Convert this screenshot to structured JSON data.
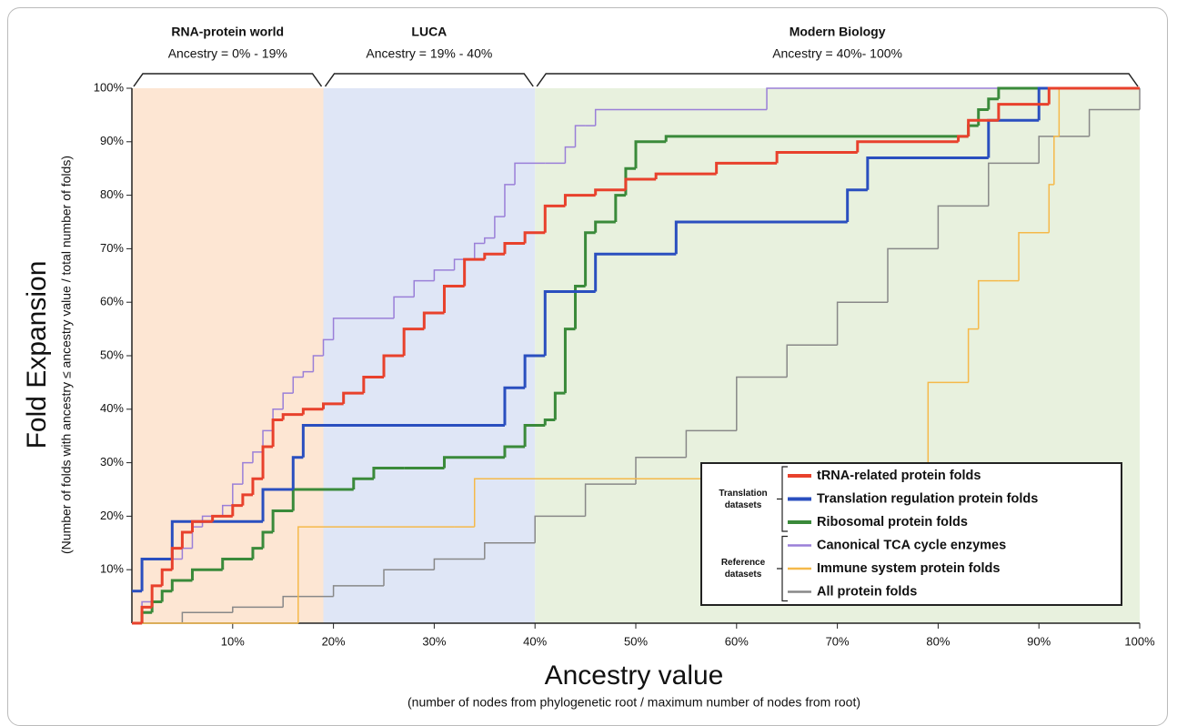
{
  "chart_data": {
    "type": "line",
    "step": true,
    "xlabel": "Ancestry value",
    "xlabel_note": "(number of nodes from phylogenetic root / maximum number of nodes from root)",
    "ylabel": "Fold Expansion",
    "ylabel_note": "(Number of folds with ancestry ≤ ancestry value / total number of folds)",
    "xlim": [
      0,
      100
    ],
    "ylim": [
      0,
      100
    ],
    "xticks": [
      {
        "value": 10,
        "label": "10%"
      },
      {
        "value": 20,
        "label": "20%"
      },
      {
        "value": 30,
        "label": "30%"
      },
      {
        "value": 40,
        "label": "40%"
      },
      {
        "value": 50,
        "label": "50%"
      },
      {
        "value": 60,
        "label": "60%"
      },
      {
        "value": 70,
        "label": "70%"
      },
      {
        "value": 80,
        "label": "80%"
      },
      {
        "value": 90,
        "label": "90%"
      },
      {
        "value": 100,
        "label": "100%"
      }
    ],
    "yticks": [
      {
        "value": 10,
        "label": "10%"
      },
      {
        "value": 20,
        "label": "20%"
      },
      {
        "value": 30,
        "label": "30%"
      },
      {
        "value": 40,
        "label": "40%"
      },
      {
        "value": 50,
        "label": "50%"
      },
      {
        "value": 60,
        "label": "60%"
      },
      {
        "value": 70,
        "label": "70%"
      },
      {
        "value": 80,
        "label": "80%"
      },
      {
        "value": 90,
        "label": "90%"
      },
      {
        "value": 100,
        "label": "100%"
      }
    ],
    "regions": [
      {
        "label": "RNA-protein world",
        "sublabel": "Ancestry = 0% - 19%",
        "range": [
          0,
          19
        ],
        "color": "#fde6d3"
      },
      {
        "label": "LUCA",
        "sublabel": "Ancestry = 19% - 40%",
        "range": [
          19,
          40
        ],
        "color": "#dfe6f6"
      },
      {
        "label": "Modern Biology",
        "sublabel": "Ancestry = 40%- 100%",
        "range": [
          40,
          100
        ],
        "color": "#e8f1de"
      }
    ],
    "legend": "lower right",
    "series": [
      {
        "name": "tRNA-related protein folds",
        "group": "Translation datasets",
        "color": "#e8412c",
        "width": 3,
        "x": [
          0,
          1,
          2,
          3,
          4,
          5,
          6,
          8,
          10,
          11,
          12,
          13,
          14,
          15,
          17,
          19,
          21,
          23,
          25,
          27,
          29,
          31,
          33,
          35,
          37,
          39,
          41,
          43,
          46,
          49,
          52,
          58,
          64,
          72,
          82,
          83,
          86,
          91,
          100
        ],
        "values": [
          0,
          3,
          7,
          10,
          14,
          17,
          19,
          20,
          22,
          24,
          27,
          33,
          38,
          39,
          40,
          41,
          43,
          46,
          50,
          55,
          58,
          63,
          68,
          69,
          71,
          73,
          78,
          80,
          81,
          83,
          84,
          86,
          88,
          90,
          91,
          94,
          97,
          100,
          100
        ]
      },
      {
        "name": "Translation regulation protein folds",
        "group": "Translation datasets",
        "color": "#2a4fbf",
        "width": 3,
        "x": [
          0,
          1,
          4,
          13,
          16,
          17,
          37,
          39,
          41,
          46,
          54,
          71,
          73,
          85,
          90,
          100
        ],
        "values": [
          6,
          12,
          19,
          25,
          31,
          37,
          44,
          50,
          62,
          69,
          75,
          81,
          87,
          94,
          100,
          100
        ]
      },
      {
        "name": "Ribosomal protein folds",
        "group": "Translation datasets",
        "color": "#3a8a3a",
        "width": 3,
        "x": [
          0,
          1,
          2,
          3,
          4,
          6,
          9,
          12,
          13,
          14,
          16,
          22,
          24,
          27,
          31,
          37,
          39,
          41,
          42,
          43,
          44,
          45,
          46,
          48,
          49,
          50,
          53,
          82,
          83,
          84,
          85,
          86,
          100
        ],
        "values": [
          0,
          2,
          4,
          6,
          8,
          10,
          12,
          14,
          17,
          21,
          25,
          27,
          29,
          29,
          31,
          33,
          37,
          38,
          43,
          55,
          63,
          73,
          75,
          80,
          85,
          90,
          91,
          91,
          93,
          96,
          98,
          100,
          100
        ]
      },
      {
        "name": "Canonical TCA cycle enzymes",
        "group": "Reference datasets",
        "color": "#9a7fd8",
        "width": 1.5,
        "x": [
          0,
          1,
          2,
          3,
          4,
          5,
          6,
          7,
          9,
          10,
          11,
          12,
          13,
          14,
          15,
          16,
          17,
          18,
          19,
          20,
          26,
          28,
          30,
          32,
          34,
          35,
          36,
          37,
          38,
          41,
          43,
          44,
          45,
          46,
          63,
          100
        ],
        "values": [
          0,
          4,
          7,
          10,
          12,
          14,
          18,
          20,
          22,
          26,
          30,
          32,
          36,
          40,
          43,
          46,
          47,
          50,
          53,
          57,
          61,
          64,
          66,
          68,
          71,
          72,
          76,
          82,
          86,
          86,
          89,
          93,
          93,
          96,
          100,
          100
        ]
      },
      {
        "name": "Immune system protein folds",
        "group": "Reference datasets",
        "color": "#f5b94a",
        "width": 1.5,
        "x": [
          0,
          16.5,
          32,
          34,
          79,
          83,
          84,
          86,
          88,
          91,
          91.5,
          92,
          100
        ],
        "values": [
          0,
          18,
          18,
          27,
          45,
          55,
          64,
          64,
          73,
          82,
          91,
          100,
          100
        ]
      },
      {
        "name": "All protein folds",
        "group": "Reference datasets",
        "color": "#888888",
        "width": 1.5,
        "x": [
          0,
          5,
          10,
          15,
          20,
          25,
          30,
          35,
          40,
          45,
          50,
          55,
          60,
          65,
          70,
          75,
          80,
          85,
          90,
          95,
          100
        ],
        "values": [
          0,
          2,
          3,
          5,
          7,
          10,
          12,
          15,
          20,
          26,
          31,
          36,
          46,
          52,
          60,
          70,
          78,
          86,
          91,
          96,
          100
        ]
      }
    ]
  }
}
